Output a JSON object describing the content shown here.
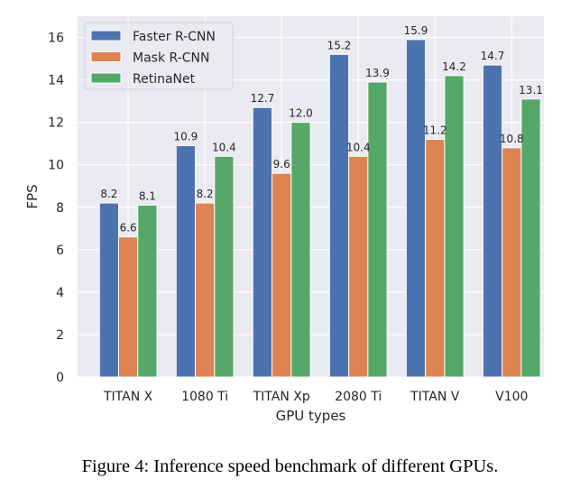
{
  "chart_data": {
    "type": "bar",
    "title": "",
    "xlabel": "GPU types",
    "ylabel": "FPS",
    "categories": [
      "TITAN X",
      "1080 Ti",
      "TITAN Xp",
      "2080 Ti",
      "TITAN V",
      "V100"
    ],
    "series": [
      {
        "name": "Faster R-CNN",
        "color": "#4c72b0",
        "values": [
          8.2,
          10.9,
          12.7,
          15.2,
          15.9,
          14.7
        ]
      },
      {
        "name": "Mask R-CNN",
        "color": "#dd8452",
        "values": [
          6.6,
          8.2,
          9.6,
          10.4,
          11.2,
          10.8
        ]
      },
      {
        "name": "RetinaNet",
        "color": "#55a868",
        "values": [
          8.1,
          10.4,
          12.0,
          13.9,
          14.2,
          13.1
        ]
      }
    ],
    "ylim": [
      0,
      17
    ],
    "yticks": [
      0,
      2,
      4,
      6,
      8,
      10,
      12,
      14,
      16
    ],
    "grid": true,
    "legend": "top-left",
    "data_labels": true,
    "background_color": "#eaeaf2",
    "grid_color": "#ffffff"
  },
  "caption": "Figure 4: Inference speed benchmark of different GPUs."
}
